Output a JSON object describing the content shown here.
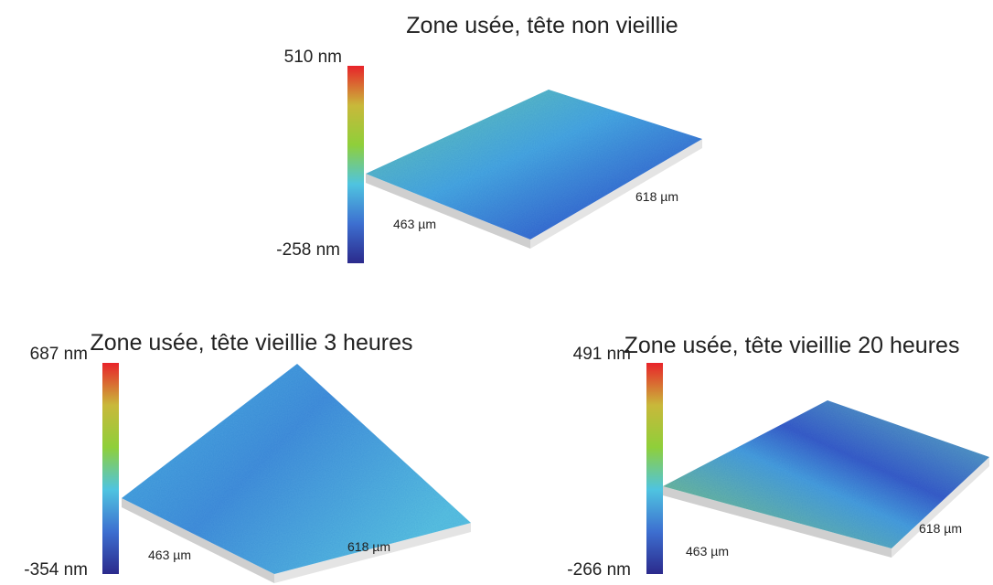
{
  "panels": [
    {
      "title": "Zone usée, tête non vieillie",
      "scale_max": "510 nm",
      "scale_min": "-258 nm",
      "width_label": "463 µm",
      "length_label": "618 µm"
    },
    {
      "title": "Zone usée, tête vieillie 3 heures",
      "scale_max": "687 nm",
      "scale_min": "-354 nm",
      "width_label": "463 µm",
      "length_label": "618 µm"
    },
    {
      "title": "Zone usée, tête vieillie 20 heures",
      "scale_max": "491 nm",
      "scale_min": "-266 nm",
      "width_label": "463 µm",
      "length_label": "618 µm"
    }
  ]
}
